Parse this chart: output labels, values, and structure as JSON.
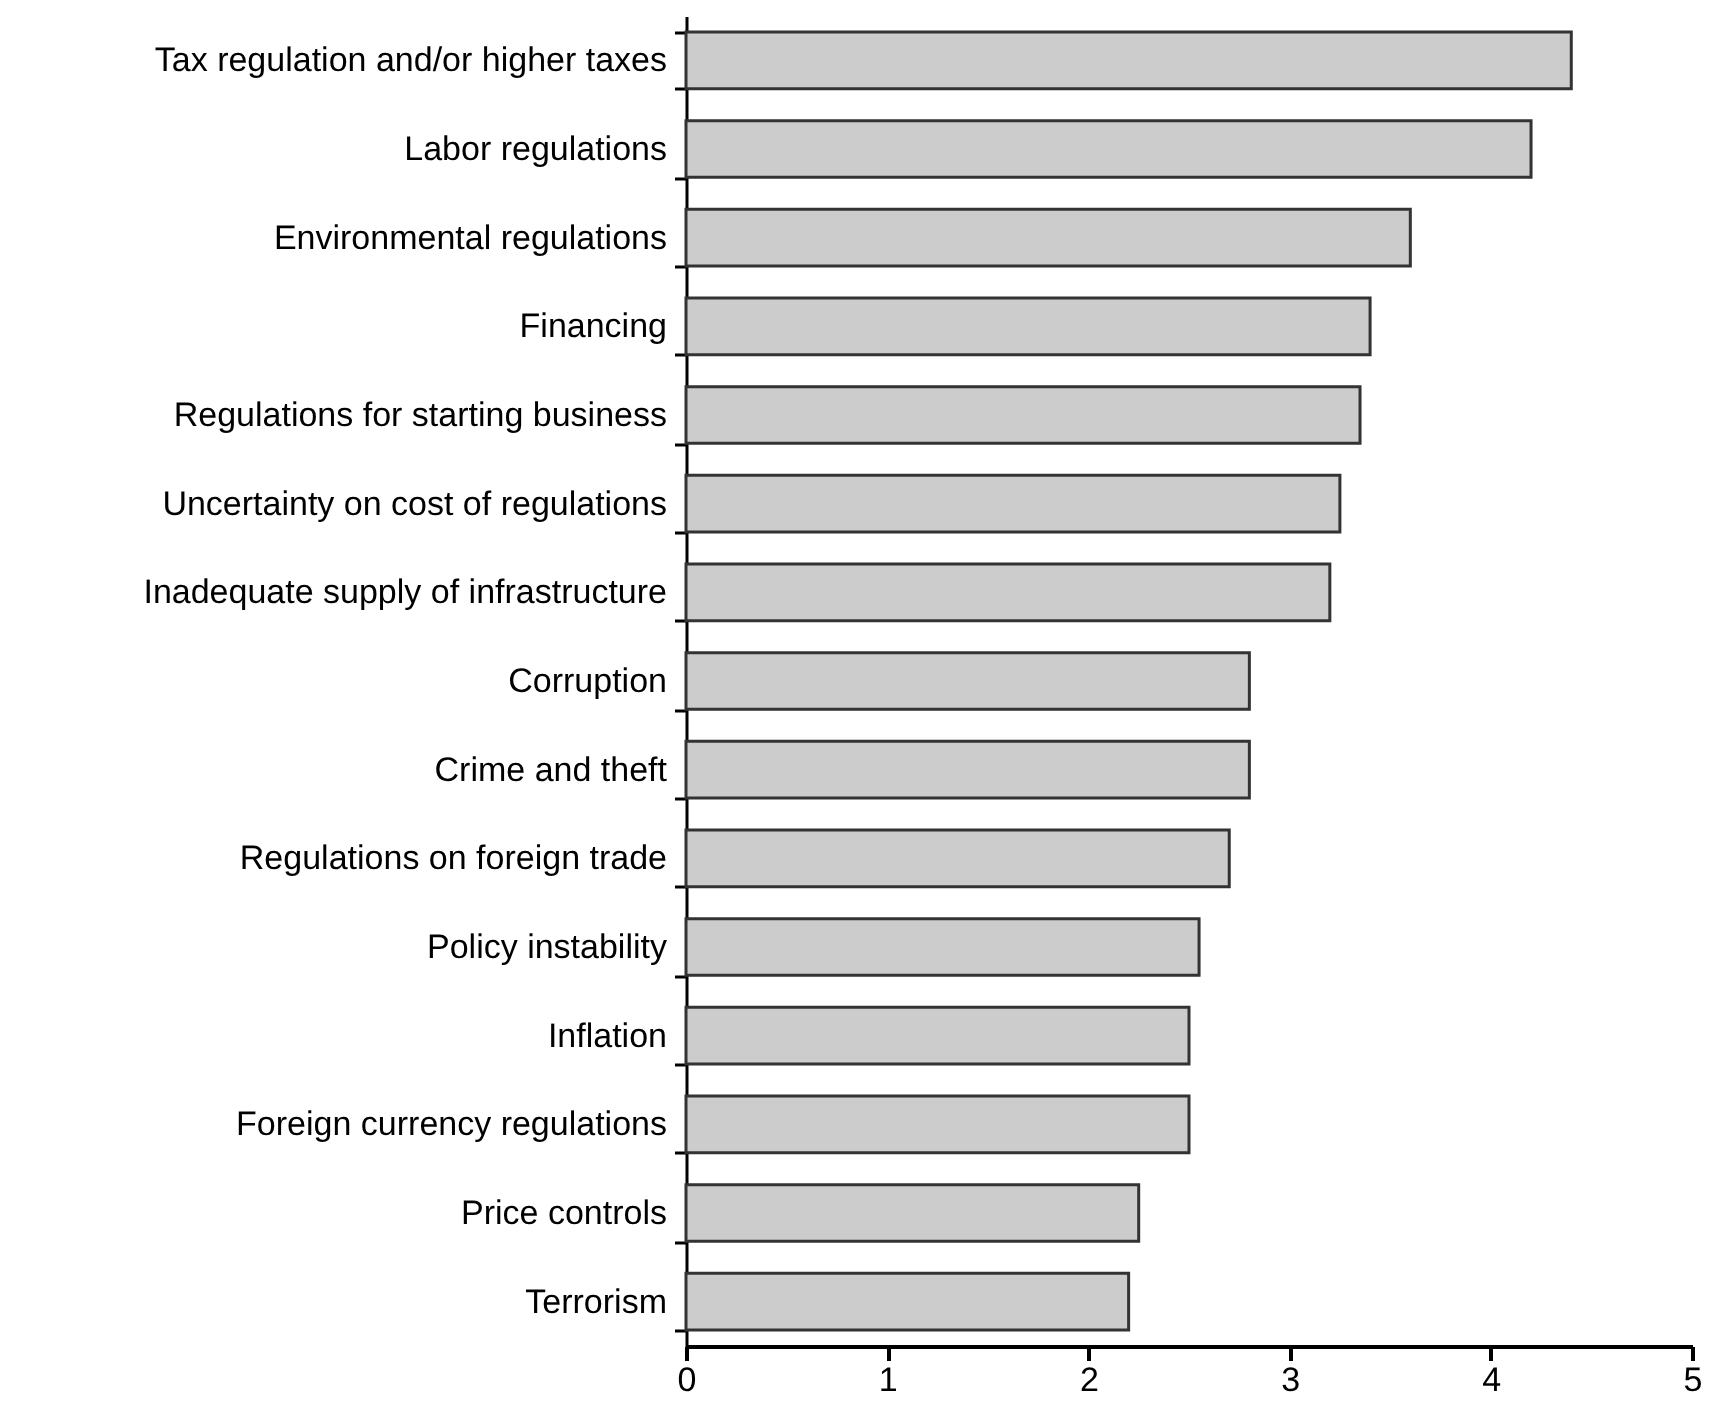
{
  "chart_data": {
    "type": "bar",
    "orientation": "horizontal",
    "categories": [
      "Tax regulation and/or higher taxes",
      "Labor regulations",
      "Environmental regulations",
      "Financing",
      "Regulations for starting business",
      "Uncertainty on cost of regulations",
      "Inadequate supply of infrastructure",
      "Corruption",
      "Crime and theft",
      "Regulations on foreign trade",
      "Policy instability",
      "Inflation",
      "Foreign currency regulations",
      "Price controls",
      "Terrorism"
    ],
    "values": [
      4.4,
      4.2,
      3.6,
      3.4,
      3.35,
      3.25,
      3.2,
      2.8,
      2.8,
      2.7,
      2.55,
      2.5,
      2.5,
      2.25,
      2.2
    ],
    "color": "#cccccc",
    "xlim": [
      0,
      5
    ],
    "xticks": [
      0,
      1,
      2,
      3,
      4,
      5
    ],
    "grid": false
  }
}
